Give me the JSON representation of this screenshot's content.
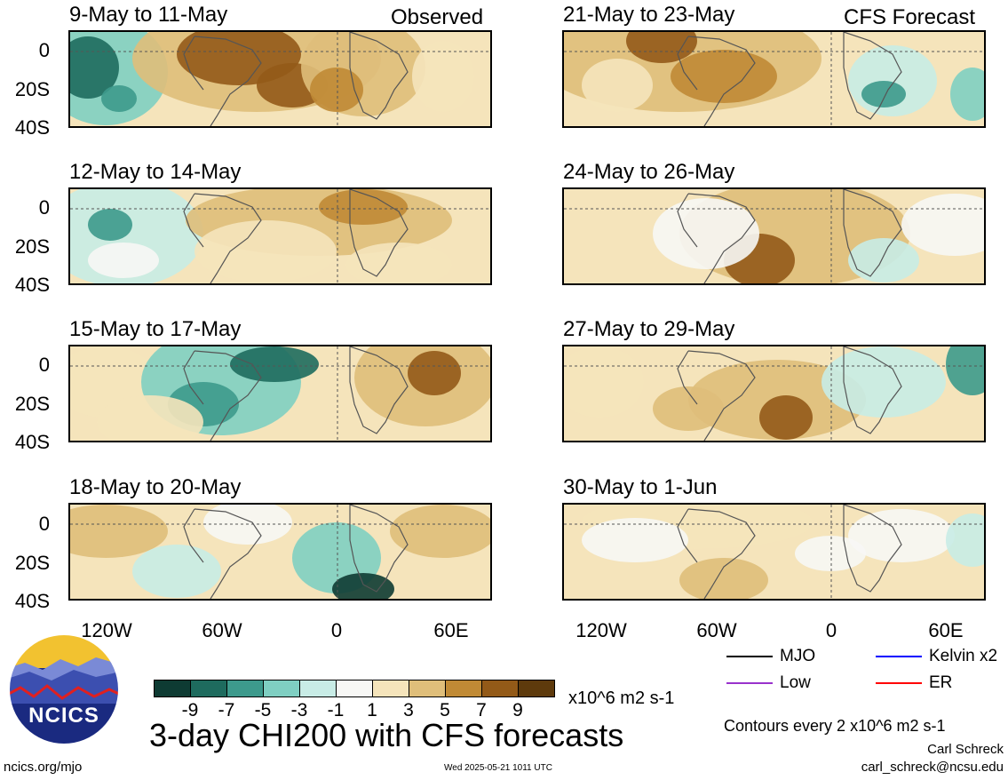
{
  "header": {
    "observed_label": "Observed",
    "forecast_label": "CFS Forecast"
  },
  "panels": {
    "left": [
      {
        "title": "9-May to 11-May"
      },
      {
        "title": "12-May to 14-May"
      },
      {
        "title": "15-May to 17-May"
      },
      {
        "title": "18-May to 20-May"
      }
    ],
    "right": [
      {
        "title": "21-May to 23-May"
      },
      {
        "title": "24-May to 26-May"
      },
      {
        "title": "27-May to 29-May"
      },
      {
        "title": "30-May to 1-Jun"
      }
    ]
  },
  "axes": {
    "lat_labels": [
      "0",
      "20S",
      "40S"
    ],
    "lon_labels": [
      "120W",
      "60W",
      "0",
      "60E"
    ]
  },
  "colorbar": {
    "ticks": [
      "-9",
      "-7",
      "-5",
      "-3",
      "-1",
      "1",
      "3",
      "5",
      "7",
      "9"
    ],
    "units": "x10^6 m2 s-1",
    "colors": [
      "#0e3b33",
      "#1e6b5e",
      "#3d9a8c",
      "#7fcfc2",
      "#c8ece6",
      "#f7f7f5",
      "#f5e4bb",
      "#dfbe7a",
      "#c08a35",
      "#935a18",
      "#5e3a0c"
    ]
  },
  "legend": {
    "mjo": {
      "label": "MJO",
      "color": "#000000"
    },
    "kelvin": {
      "label": "Kelvin x2",
      "color": "#0000ff"
    },
    "low": {
      "label": "Low",
      "color": "#9932cc"
    },
    "er": {
      "label": "ER",
      "color": "#ff0000"
    },
    "contours_note": "Contours every 2 x10^6 m2 s-1"
  },
  "footer": {
    "main_title": "3-day CHI200 with CFS forecasts",
    "site": "ncics.org/mjo",
    "timestamp": "Wed 2025-05-21 1011 UTC",
    "author": "Carl Schreck",
    "email": "carl_schreck@ncsu.edu",
    "logo_text": "NCICS"
  }
}
